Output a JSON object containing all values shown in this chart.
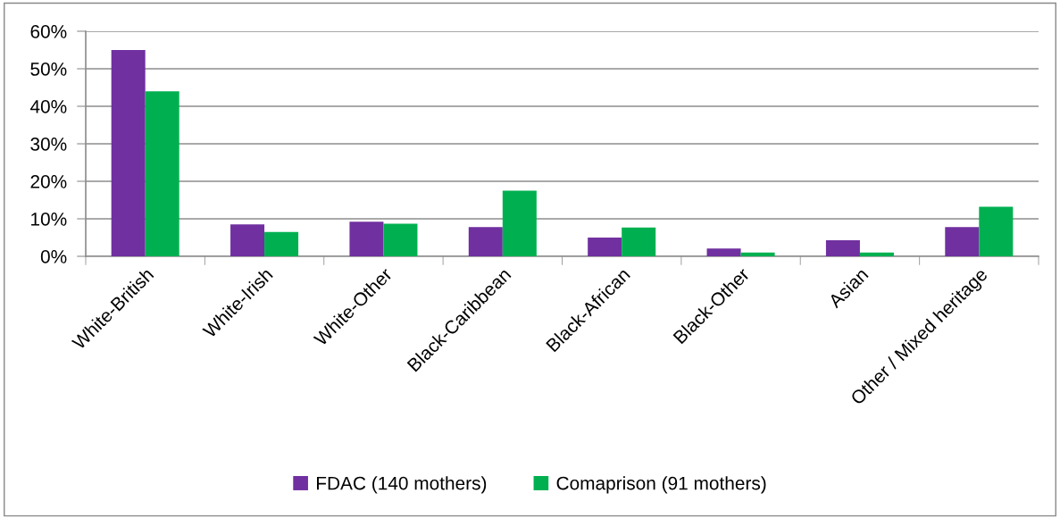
{
  "chart_data": {
    "type": "bar",
    "categories": [
      "White-British",
      "White-Irish",
      "White-Other",
      "Black-Caribbean",
      "Black-African",
      "Black-Other",
      "Asian",
      "Other / Mixed heritage"
    ],
    "series": [
      {
        "name": "FDAC (140 mothers)",
        "color": "#7030a0",
        "values": [
          55,
          8.5,
          9.2,
          7.8,
          5.0,
          2.1,
          4.3,
          7.8
        ]
      },
      {
        "name": "Comaprison (91 mothers)",
        "color": "#00b050",
        "values": [
          44,
          6.5,
          8.7,
          17.5,
          7.7,
          1.0,
          1.0,
          13.2
        ]
      }
    ],
    "ylim": [
      0,
      60
    ],
    "yticks": [
      {
        "value": 0,
        "label": "0%"
      },
      {
        "value": 10,
        "label": "10%"
      },
      {
        "value": 20,
        "label": "20%"
      },
      {
        "value": 30,
        "label": "30%"
      },
      {
        "value": 40,
        "label": "40%"
      },
      {
        "value": 50,
        "label": "50%"
      },
      {
        "value": 60,
        "label": "60%"
      }
    ],
    "grid": "y",
    "legend": "bottom"
  }
}
